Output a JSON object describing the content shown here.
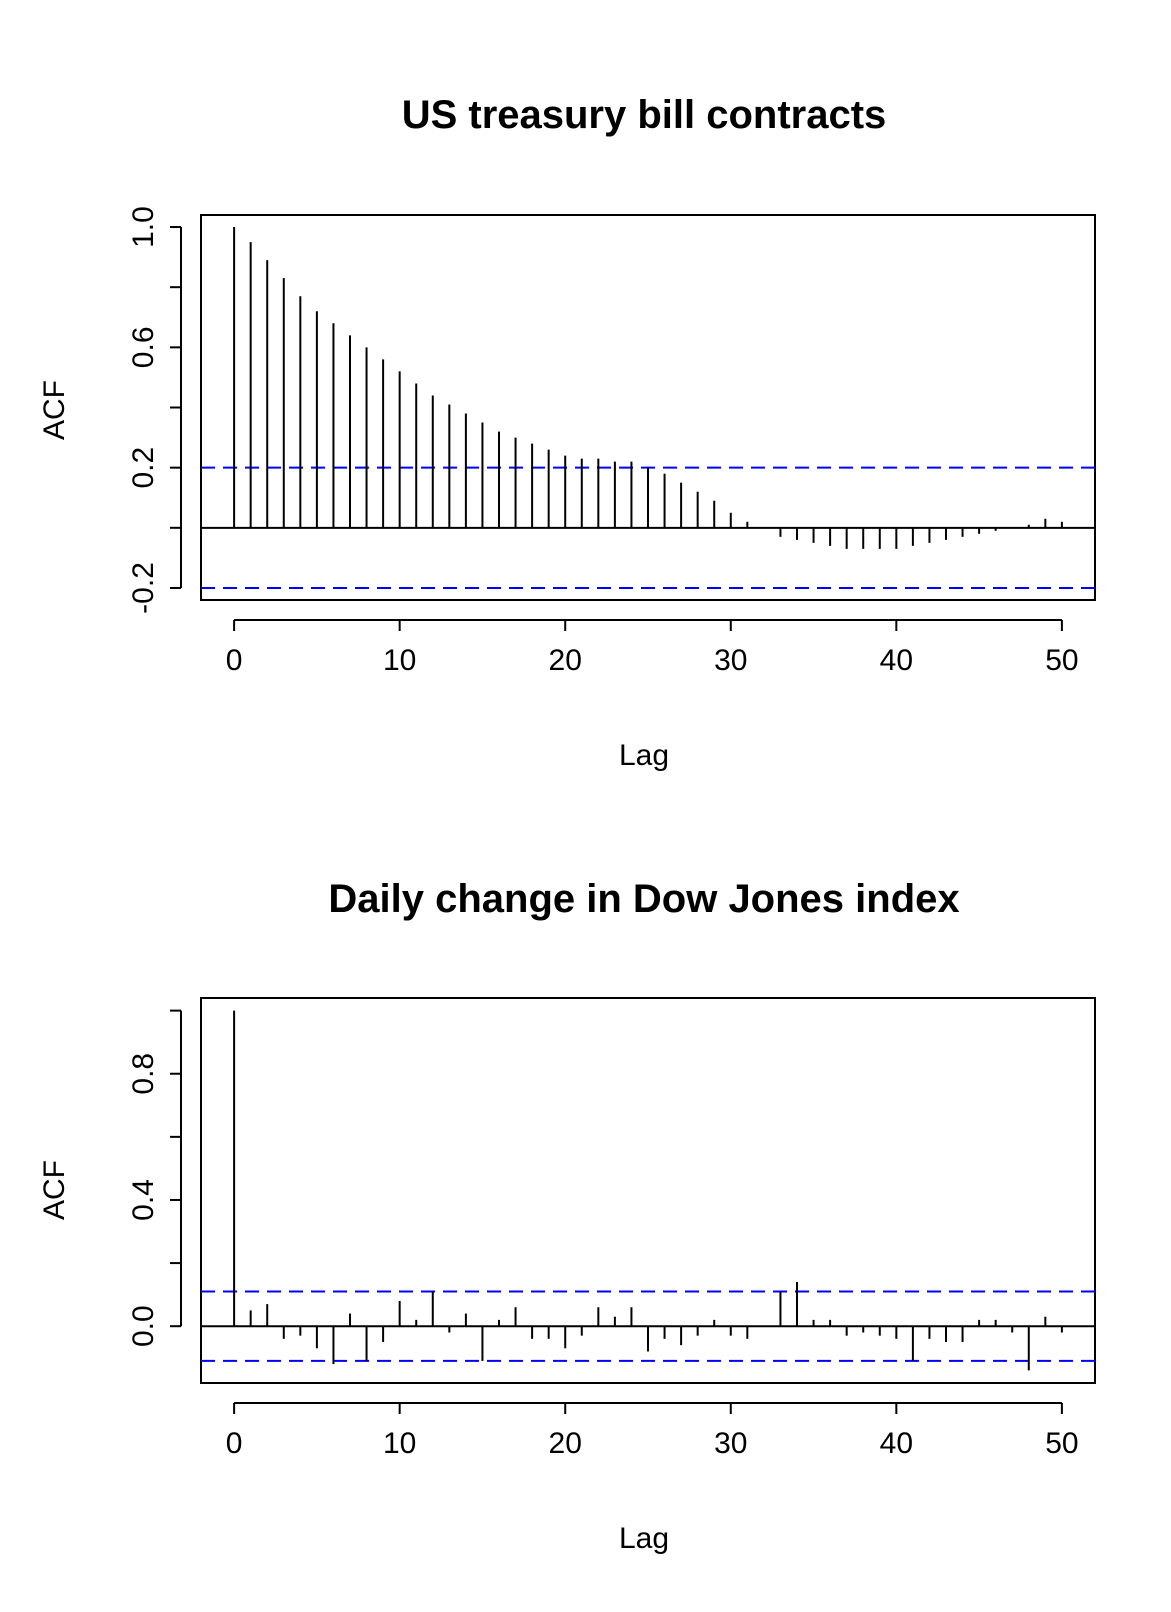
{
  "chart_data": [
    {
      "type": "bar",
      "title": "US treasury bill contracts",
      "xlabel": "Lag",
      "ylabel": "ACF",
      "xlim": [
        -2,
        52
      ],
      "ylim": [
        -0.24,
        1.04
      ],
      "x_ticks": [
        0,
        10,
        20,
        30,
        40,
        50
      ],
      "x_tick_labels": [
        "0",
        "10",
        "20",
        "30",
        "40",
        "50"
      ],
      "y_ticks": [
        -0.2,
        0.2,
        0.6,
        1.0
      ],
      "y_tick_labels": [
        "-0.2",
        "0.2",
        "0.6",
        "1.0"
      ],
      "y_minor_ticks": [
        0.0,
        0.4,
        0.8
      ],
      "confidence_band": 0.2,
      "band_color": "#0000ff",
      "lags": [
        0,
        1,
        2,
        3,
        4,
        5,
        6,
        7,
        8,
        9,
        10,
        11,
        12,
        13,
        14,
        15,
        16,
        17,
        18,
        19,
        20,
        21,
        22,
        23,
        24,
        25,
        26,
        27,
        28,
        29,
        30,
        31,
        32,
        33,
        34,
        35,
        36,
        37,
        38,
        39,
        40,
        41,
        42,
        43,
        44,
        45,
        46,
        47,
        48,
        49,
        50
      ],
      "values": [
        1.0,
        0.95,
        0.89,
        0.83,
        0.77,
        0.72,
        0.68,
        0.64,
        0.6,
        0.56,
        0.52,
        0.48,
        0.44,
        0.41,
        0.38,
        0.35,
        0.32,
        0.3,
        0.28,
        0.26,
        0.24,
        0.23,
        0.23,
        0.22,
        0.22,
        0.2,
        0.18,
        0.15,
        0.12,
        0.09,
        0.05,
        0.02,
        0.0,
        -0.03,
        -0.04,
        -0.05,
        -0.06,
        -0.07,
        -0.07,
        -0.07,
        -0.07,
        -0.06,
        -0.05,
        -0.04,
        -0.03,
        -0.02,
        -0.01,
        0.0,
        0.01,
        0.03,
        0.02
      ]
    },
    {
      "type": "bar",
      "title": "Daily change in Dow Jones index",
      "xlabel": "Lag",
      "ylabel": "ACF",
      "xlim": [
        -2,
        52
      ],
      "ylim": [
        -0.18,
        1.04
      ],
      "x_ticks": [
        0,
        10,
        20,
        30,
        40,
        50
      ],
      "x_tick_labels": [
        "0",
        "10",
        "20",
        "30",
        "40",
        "50"
      ],
      "y_ticks": [
        0.0,
        0.4,
        0.8
      ],
      "y_tick_labels": [
        "0.0",
        "0.4",
        "0.8"
      ],
      "y_minor_ticks": [
        0.2,
        0.6,
        1.0
      ],
      "confidence_band": 0.11,
      "band_color": "#0000ff",
      "lags": [
        0,
        1,
        2,
        3,
        4,
        5,
        6,
        7,
        8,
        9,
        10,
        11,
        12,
        13,
        14,
        15,
        16,
        17,
        18,
        19,
        20,
        21,
        22,
        23,
        24,
        25,
        26,
        27,
        28,
        29,
        30,
        31,
        32,
        33,
        34,
        35,
        36,
        37,
        38,
        39,
        40,
        41,
        42,
        43,
        44,
        45,
        46,
        47,
        48,
        49,
        50
      ],
      "values": [
        1.0,
        0.05,
        0.07,
        -0.04,
        -0.03,
        -0.07,
        -0.12,
        0.04,
        -0.11,
        -0.05,
        0.08,
        0.02,
        0.11,
        -0.02,
        0.04,
        -0.11,
        0.02,
        0.06,
        -0.04,
        -0.04,
        -0.07,
        -0.03,
        0.06,
        0.03,
        0.06,
        -0.08,
        -0.04,
        -0.06,
        -0.03,
        0.02,
        -0.03,
        -0.04,
        0.0,
        0.11,
        0.14,
        0.02,
        0.02,
        -0.03,
        -0.02,
        -0.03,
        -0.04,
        -0.11,
        -0.04,
        -0.05,
        -0.05,
        0.02,
        0.02,
        -0.02,
        -0.14,
        0.03,
        -0.02
      ]
    }
  ]
}
